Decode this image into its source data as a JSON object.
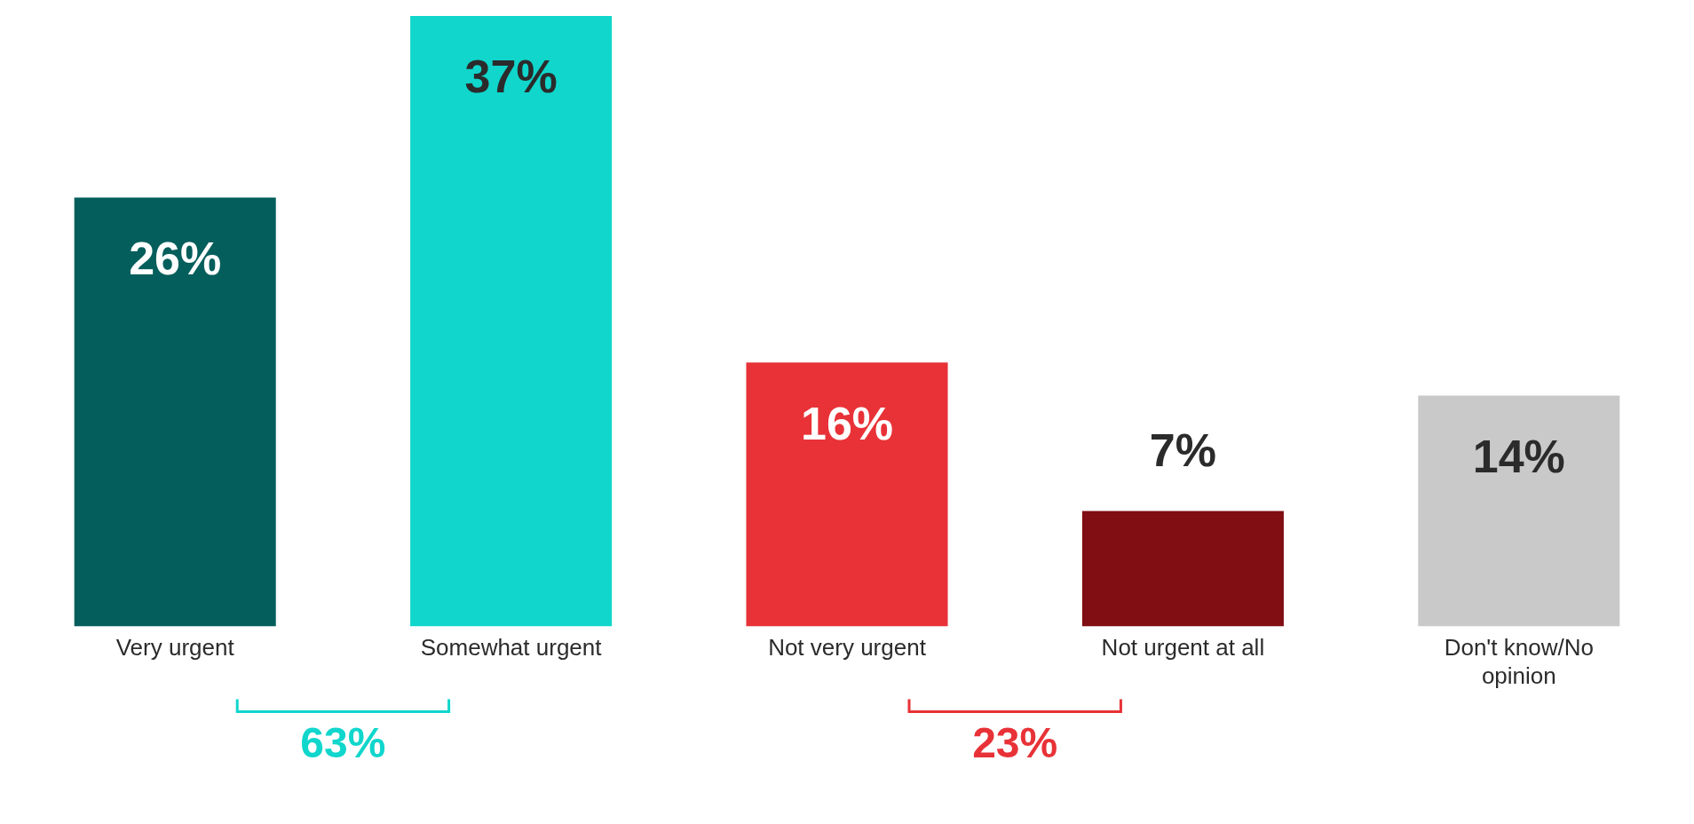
{
  "chart_data": {
    "type": "bar",
    "categories": [
      "Very urgent",
      "Somewhat urgent",
      "Not very urgent",
      "Not urgent at all",
      "Don't know/No opinion"
    ],
    "values": [
      26,
      37,
      16,
      7,
      14
    ],
    "colors": [
      "#035e5c",
      "#10d6cc",
      "#e83237",
      "#800e12",
      "#c9c9c9"
    ],
    "value_labels": [
      "26%",
      "37%",
      "16%",
      "7%",
      "14%"
    ],
    "annotations": [
      "63%",
      "23%"
    ],
    "grid": false,
    "legend": false
  }
}
